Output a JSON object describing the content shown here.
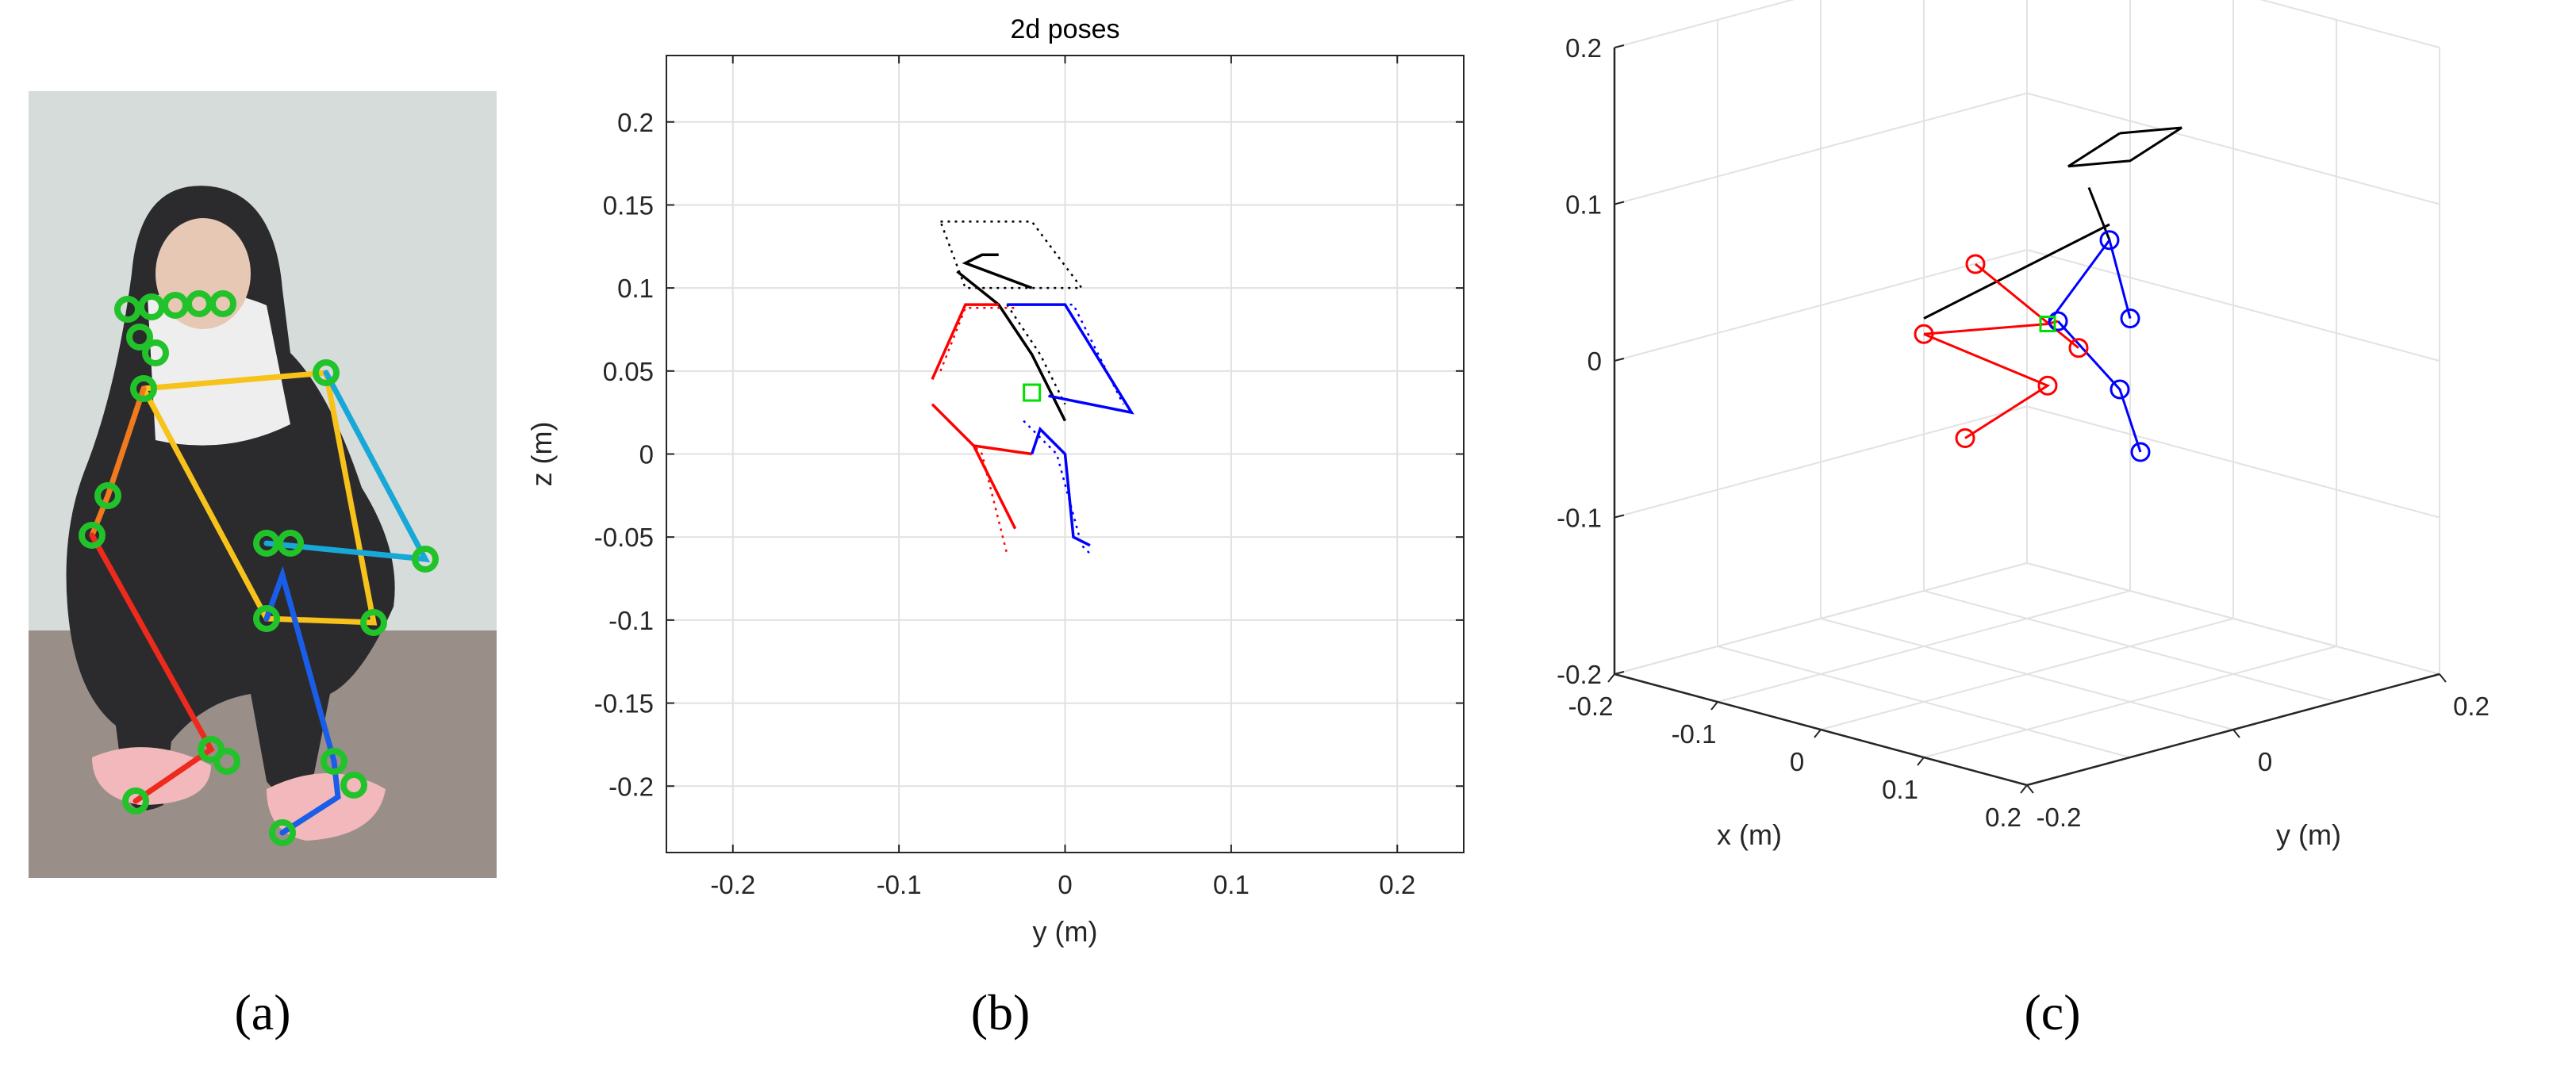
{
  "figure": {
    "labels": {
      "a": "(a)",
      "b": "(b)",
      "c": "(c)"
    }
  },
  "photo": {
    "background_color": "#d6dcda",
    "floor_color": "#9a8f88",
    "skeleton_colors": {
      "keypoint": "#22c22a",
      "torso": "#f7c21a",
      "right_arm": "#18a8d8",
      "left_arm": "#f07a1e",
      "right_leg": "#1a5de8",
      "left_leg": "#ee2a1c"
    }
  },
  "chart_data": [
    {
      "type": "line",
      "title": "2d poses",
      "xlabel": "y (m)",
      "ylabel": "z (m)",
      "xlim": [
        -0.24,
        0.24
      ],
      "ylim": [
        -0.24,
        0.24
      ],
      "xticks": [
        -0.2,
        -0.1,
        0,
        0.1,
        0.2
      ],
      "xtick_labels": [
        "-0.2",
        "-0.1",
        "0",
        "0.1",
        "0.2"
      ],
      "yticks": [
        -0.2,
        -0.15,
        -0.1,
        -0.05,
        0,
        0.05,
        0.1,
        0.15,
        0.2
      ],
      "ytick_labels": [
        "-0.2",
        "-0.15",
        "-0.1",
        "-0.05",
        "0",
        "0.05",
        "0.1",
        "0.15",
        "0.2"
      ],
      "grid": true,
      "series": [
        {
          "color": "#000000",
          "style": "solid",
          "points": [
            [
              -0.02,
              0.1
            ],
            [
              -0.06,
              0.115
            ],
            [
              -0.05,
              0.12
            ],
            [
              -0.04,
              0.12
            ]
          ]
        },
        {
          "color": "#000000",
          "style": "solid",
          "points": [
            [
              -0.065,
              0.11
            ],
            [
              -0.04,
              0.09
            ],
            [
              -0.02,
              0.06
            ],
            [
              0.0,
              0.02
            ]
          ]
        },
        {
          "color": "#000000",
          "style": "dotted",
          "points": [
            [
              -0.075,
              0.14
            ],
            [
              -0.02,
              0.14
            ],
            [
              0.01,
              0.1
            ],
            [
              -0.06,
              0.1
            ],
            [
              -0.075,
              0.14
            ]
          ]
        },
        {
          "color": "#000000",
          "style": "dotted",
          "points": [
            [
              -0.035,
              0.09
            ],
            [
              -0.015,
              0.06
            ],
            [
              0.0,
              0.03
            ]
          ]
        },
        {
          "color": "#ff0000",
          "style": "solid",
          "points": [
            [
              -0.08,
              0.045
            ],
            [
              -0.06,
              0.09
            ],
            [
              -0.04,
              0.09
            ]
          ]
        },
        {
          "color": "#ff0000",
          "style": "dotted",
          "points": [
            [
              -0.075,
              0.05
            ],
            [
              -0.06,
              0.088
            ],
            [
              -0.03,
              0.088
            ]
          ]
        },
        {
          "color": "#ff0000",
          "style": "solid",
          "points": [
            [
              -0.08,
              0.03
            ],
            [
              -0.055,
              0.005
            ],
            [
              -0.03,
              -0.045
            ]
          ]
        },
        {
          "color": "#ff0000",
          "style": "dotted",
          "points": [
            [
              -0.075,
              0.025
            ],
            [
              -0.05,
              0.0
            ],
            [
              -0.035,
              -0.06
            ]
          ]
        },
        {
          "color": "#ff0000",
          "style": "solid",
          "points": [
            [
              -0.055,
              0.005
            ],
            [
              -0.02,
              0.0
            ]
          ]
        },
        {
          "color": "#0000ff",
          "style": "solid",
          "points": [
            [
              -0.035,
              0.09
            ],
            [
              0.0,
              0.09
            ],
            [
              0.04,
              0.025
            ],
            [
              -0.01,
              0.035
            ]
          ]
        },
        {
          "color": "#0000ff",
          "style": "dotted",
          "points": [
            [
              -0.01,
              0.09
            ],
            [
              0.005,
              0.09
            ],
            [
              0.035,
              0.03
            ]
          ]
        },
        {
          "color": "#0000ff",
          "style": "solid",
          "points": [
            [
              -0.02,
              0.0
            ],
            [
              -0.015,
              0.015
            ],
            [
              0.0,
              0.0
            ],
            [
              0.005,
              -0.05
            ],
            [
              0.015,
              -0.055
            ]
          ]
        },
        {
          "color": "#0000ff",
          "style": "dotted",
          "points": [
            [
              -0.025,
              0.02
            ],
            [
              -0.005,
              0.0
            ],
            [
              0.01,
              -0.055
            ],
            [
              0.015,
              -0.06
            ]
          ]
        }
      ],
      "markers": [
        {
          "shape": "square",
          "color": "#00e000",
          "x": -0.02,
          "y": 0.037
        }
      ]
    },
    {
      "type": "scatter",
      "projection": "3d",
      "xlabel": "x (m)",
      "ylabel": "y (m)",
      "zlabel": "z (m)",
      "xlim": [
        -0.2,
        0.2
      ],
      "ylim": [
        -0.2,
        0.2
      ],
      "zlim": [
        -0.2,
        0.2
      ],
      "xtick_labels": [
        "-0.2",
        "-0.1",
        "0",
        "0.1",
        "0.2"
      ],
      "ytick_labels": [
        "-0.2",
        "0",
        "0.2"
      ],
      "ztick_labels": [
        "-0.2",
        "-0.1",
        "0",
        "0.1",
        "0.2"
      ],
      "grid": true,
      "joint_colors": {
        "left": "#ff0000",
        "right": "#0000ff",
        "head": "#000000",
        "root": "#00e000"
      },
      "joints_right": [
        [
          0.02,
          0.06,
          0.07
        ],
        [
          0.0,
          0.03,
          0.02
        ],
        [
          0.03,
          0.07,
          0.02
        ],
        [
          0.04,
          0.05,
          -0.02
        ],
        [
          0.05,
          0.06,
          -0.06
        ]
      ],
      "joints_left": [
        [
          -0.03,
          -0.02,
          0.06
        ],
        [
          -0.07,
          -0.03,
          0.01
        ],
        [
          0.03,
          0.02,
          0.01
        ],
        [
          -0.03,
          0.05,
          -0.03
        ],
        [
          -0.06,
          0.0,
          -0.06
        ]
      ],
      "root": [
        0.0,
        0.02,
        0.02
      ]
    }
  ]
}
